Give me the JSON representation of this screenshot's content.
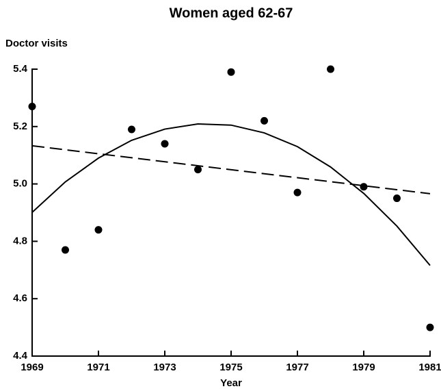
{
  "chart_data": {
    "type": "scatter",
    "title": "Women aged 62-67",
    "y_label": "Doctor visits",
    "x_label": "Year",
    "series": [
      {
        "mode": "markers",
        "color": "#000000",
        "x": [
          1969,
          1970,
          1971,
          1972,
          1973,
          1974,
          1975,
          1976,
          1977,
          1978,
          1979,
          1980,
          1981
        ],
        "values": [
          5.27,
          4.77,
          4.84,
          5.19,
          5.14,
          5.05,
          5.39,
          5.22,
          4.97,
          5.4,
          4.99,
          4.95,
          4.5
        ]
      },
      {
        "mode": "line",
        "color": "#000000",
        "x": [
          1969,
          1970,
          1971,
          1972,
          1973,
          1974,
          1975,
          1976,
          1977,
          1978,
          1979,
          1980,
          1981
        ],
        "values": [
          4.901,
          5.007,
          5.09,
          5.152,
          5.191,
          5.209,
          5.205,
          5.178,
          5.13,
          5.059,
          4.967,
          4.853,
          4.716
        ]
      },
      {
        "mode": "dashed",
        "color": "#000000",
        "x": [
          1969,
          1981
        ],
        "values": [
          5.133,
          4.966
        ]
      }
    ],
    "xlim": [
      1969,
      1981
    ],
    "xticks": [
      1969,
      1971,
      1973,
      1975,
      1977,
      1979,
      1981
    ],
    "ylim": [
      4.4,
      5.4
    ],
    "yticks": [
      4.4,
      4.6,
      4.8,
      {
        "value": 5,
        "label": "5.0"
      },
      5.2,
      5.4
    ]
  }
}
